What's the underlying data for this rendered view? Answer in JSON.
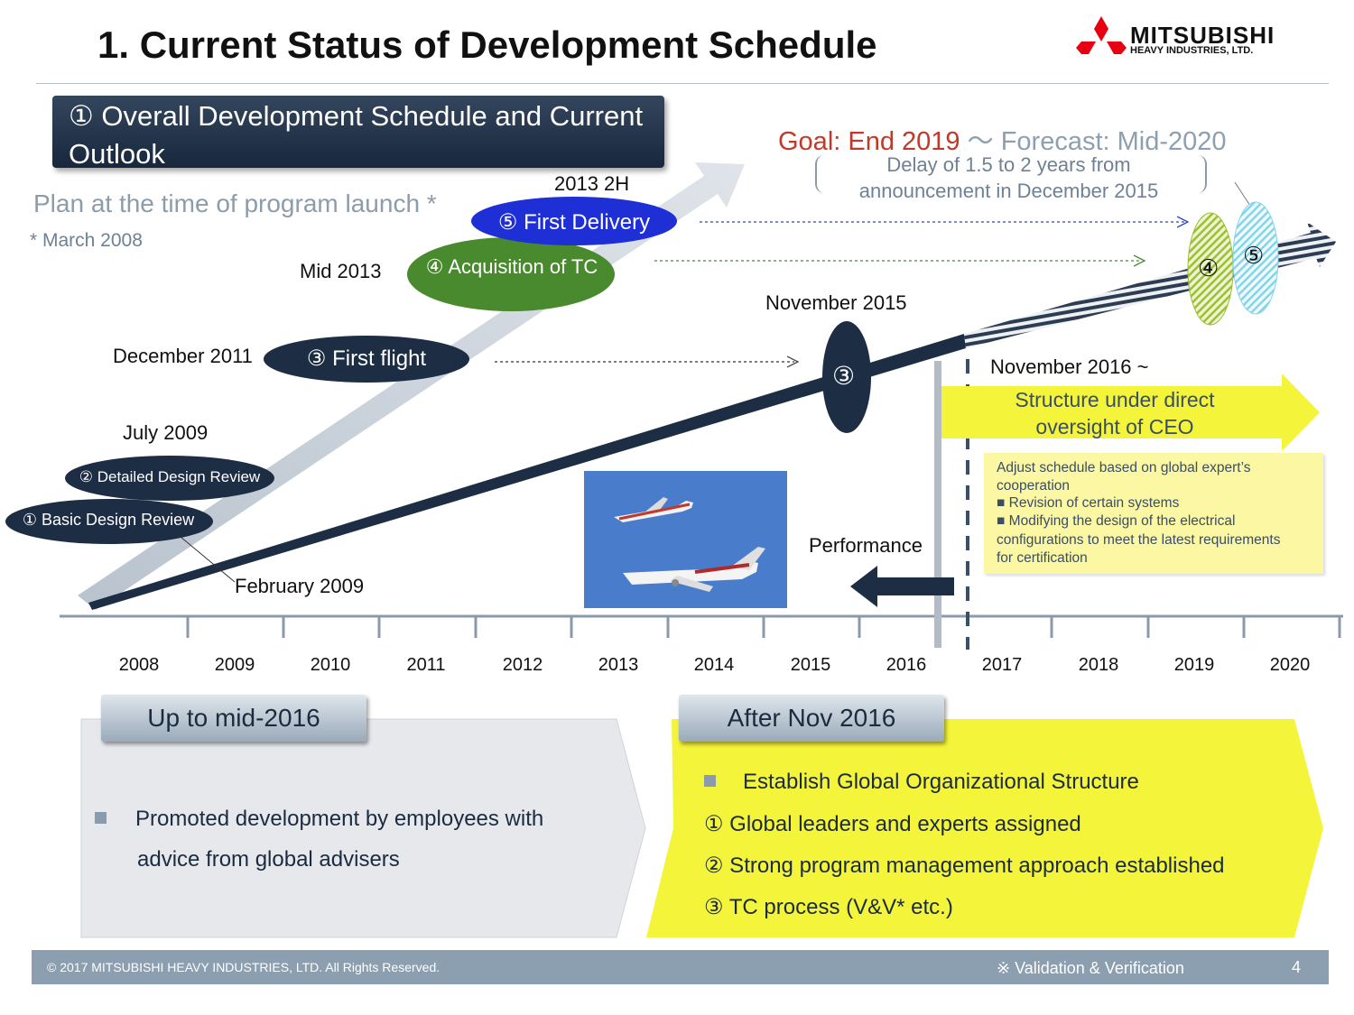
{
  "header": {
    "title": "1. Current Status of Development Schedule",
    "logo_line1": "MITSUBISHI",
    "logo_line2": "HEAVY INDUSTRIES, LTD."
  },
  "section_title": "① Overall Development Schedule and Current Outlook",
  "plan": {
    "label": "Plan at the time of program launch *",
    "note": "* March 2008"
  },
  "milestones": [
    {
      "label": "① Basic Design Review"
    },
    {
      "label": "② Detailed Design Review"
    },
    {
      "label": "③ First flight"
    },
    {
      "label": "④ Acquisition of TC"
    },
    {
      "label": "⑤ First Delivery"
    }
  ],
  "milestone_dates": {
    "feb2009": "February 2009",
    "jul2009": "July 2009",
    "dec2011": "December 2011",
    "mid2013": "Mid 2013",
    "h2_2013": "2013 2H",
    "nov2015": "November 2015",
    "nov2016": "November 2016 ~"
  },
  "actual_markers": {
    "first_flight": "③",
    "tc": "④",
    "delivery": "⑤"
  },
  "goal": {
    "goal_text": "Goal: End 2019",
    "separator": "〜",
    "forecast_text": "Forecast: Mid-2020",
    "delay_line1": "Delay of 1.5 to 2 years from",
    "delay_line2": "announcement in December 2015"
  },
  "axis_years": [
    "2008",
    "2009",
    "2010",
    "2011",
    "2012",
    "2013",
    "2014",
    "2015",
    "2016",
    "2017",
    "2018",
    "2019",
    "2020"
  ],
  "performance_label": "Performance",
  "ceo_arrow": {
    "line1": "Structure under direct",
    "line2": "oversight of CEO"
  },
  "adjust_box": {
    "line1": "Adjust schedule based on global expert’s",
    "line2": "cooperation",
    "line3": "■ Revision of certain systems",
    "line4": "■ Modifying the design of the electrical",
    "line5": "configurations to meet the latest requirements",
    "line6": "for certification"
  },
  "bottom_left": {
    "tab": "Up to mid-2016",
    "line1": "Promoted development by employees with",
    "line2": "advice from global advisers"
  },
  "bottom_right": {
    "tab": "After Nov 2016",
    "item0": "Establish Global Organizational Structure",
    "item1": "① Global leaders and experts assigned",
    "item2": "② Strong program management approach established",
    "item3": "③ TC process (V&V* etc.)"
  },
  "footer": {
    "copyright": "© 2017 MITSUBISHI HEAVY INDUSTRIES, LTD.  All Rights Reserved.",
    "note": "※ Validation & Verification",
    "page": "4"
  },
  "colors": {
    "navy": "#1c2d44",
    "plan_arrow": "#c9d0d8",
    "first_delivery_blue": "#1f2fd6",
    "tc_green": "#4a8a2e",
    "yellow": "#f4f43a",
    "goal_red": "#c0392b"
  }
}
